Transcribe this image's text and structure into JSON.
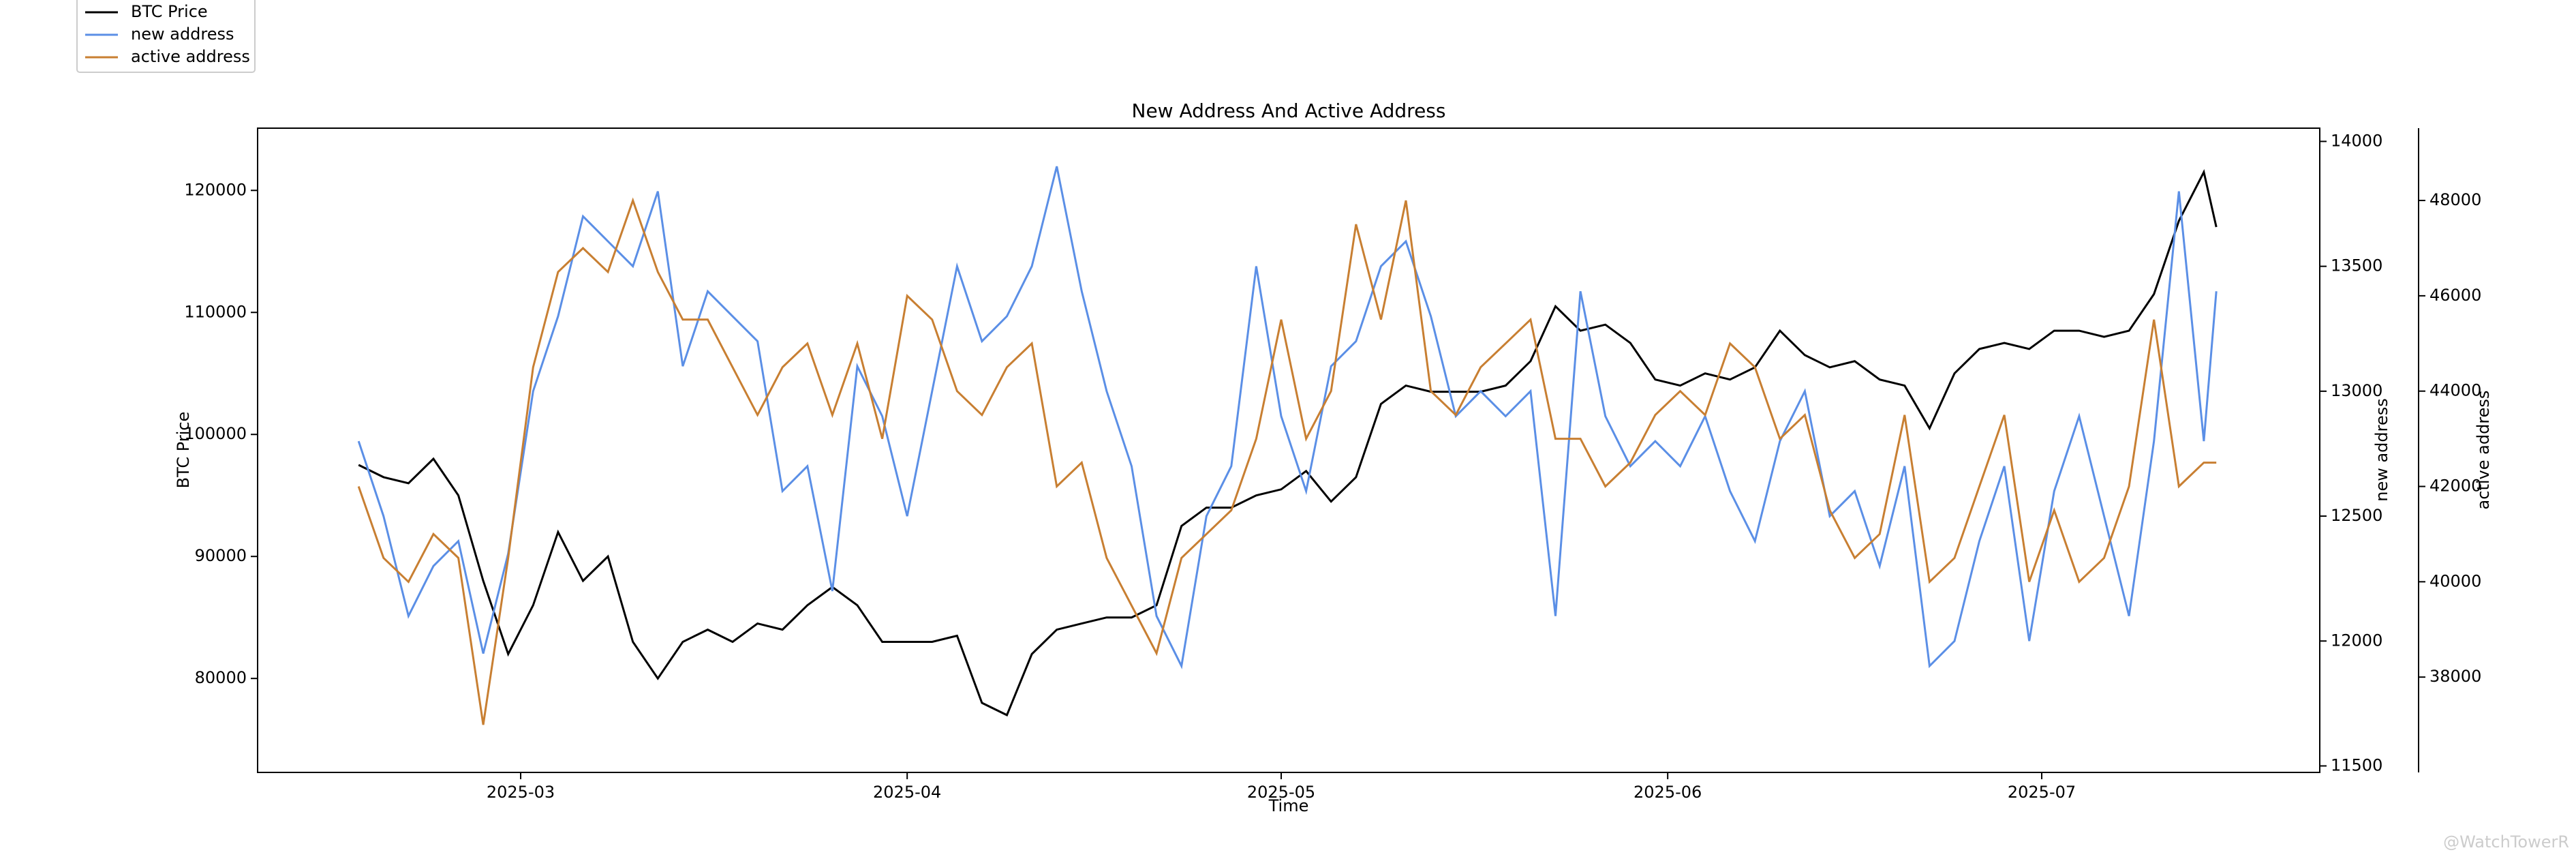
{
  "chart_data": {
    "type": "line",
    "title": "New Address And Active Address",
    "xlabel": "Time",
    "ylabel": "BTC Price",
    "y2label": "new address",
    "y3label": "active address",
    "watermark": "@WatchTowerR",
    "legend": "upper left",
    "x": [
      20135,
      20137,
      20139,
      20141,
      20143,
      20145,
      20147,
      20149,
      20151,
      20153,
      20155,
      20157,
      20159,
      20161,
      20163,
      20165,
      20167,
      20169,
      20171,
      20173,
      20175,
      20177,
      20179,
      20181,
      20183,
      20185,
      20187,
      20189,
      20191,
      20193,
      20195,
      20197,
      20199,
      20201,
      20203,
      20205,
      20207,
      20209,
      20211,
      20213,
      20215,
      20217,
      20219,
      20221,
      20223,
      20225,
      20227,
      20229,
      20231,
      20233,
      20235,
      20237,
      20239,
      20241,
      20243,
      20245,
      20247,
      20249,
      20251,
      20253,
      20255,
      20257,
      20259,
      20261,
      20263,
      20265,
      20267,
      20269,
      20271,
      20273,
      20275,
      20277,
      20279,
      20281,
      20283,
      20284
    ],
    "xlim": [
      20126.9,
      20292.3
    ],
    "xticks": [
      {
        "value": 20148,
        "label": "2025-03"
      },
      {
        "value": 20179,
        "label": "2025-04"
      },
      {
        "value": 20209,
        "label": "2025-05"
      },
      {
        "value": 20240,
        "label": "2025-06"
      },
      {
        "value": 20270,
        "label": "2025-07"
      }
    ],
    "ylim": [
      72300,
      125100
    ],
    "yticks": [
      80000,
      90000,
      100000,
      110000,
      120000
    ],
    "y2lim": [
      11474,
      14053
    ],
    "y2ticks": [
      11500,
      12000,
      12500,
      13000,
      13500,
      14000
    ],
    "y3lim": [
      36000,
      49517
    ],
    "y3ticks": [
      38000,
      40000,
      42000,
      44000,
      46000,
      48000
    ],
    "series": [
      {
        "name": "BTC Price",
        "color": "#000000",
        "values": [
          97500,
          96500,
          96000,
          98000,
          95000,
          88000,
          82000,
          86000,
          92000,
          88000,
          90000,
          83000,
          80000,
          83000,
          84000,
          83000,
          84500,
          84000,
          86000,
          87500,
          86000,
          83000,
          83000,
          83000,
          83500,
          78000,
          77000,
          82000,
          84000,
          84500,
          85000,
          85000,
          86000,
          92500,
          94000,
          94000,
          95000,
          95500,
          97000,
          94500,
          96500,
          102500,
          104000,
          103500,
          103500,
          103500,
          104000,
          106000,
          110500,
          108500,
          109000,
          107500,
          104500,
          104000,
          105000,
          104500,
          105500,
          108500,
          106500,
          105500,
          106000,
          104500,
          104000,
          100500,
          105000,
          107000,
          107500,
          107000,
          108500,
          108500,
          108000,
          108500,
          111500,
          117500,
          121500,
          117000
        ]
      },
      {
        "name": "new address",
        "color": "#5b8fe6",
        "axis": "y2",
        "values": [
          12800,
          12500,
          12100,
          12300,
          12400,
          11950,
          12350,
          13000,
          13300,
          13700,
          13600,
          13500,
          13800,
          13100,
          13400,
          13300,
          13200,
          12600,
          12700,
          12200,
          13100,
          12900,
          12500,
          13000,
          13500,
          13200,
          13300,
          13500,
          13900,
          13400,
          13000,
          12700,
          12100,
          11900,
          12500,
          12700,
          13500,
          12900,
          12600,
          13100,
          13200,
          13500,
          13600,
          13300,
          12900,
          13000,
          12900,
          13000,
          12100,
          13400,
          12900,
          12700,
          12800,
          12700,
          12900,
          12600,
          12400,
          12800,
          13000,
          12500,
          12600,
          12300,
          12700,
          11900,
          12000,
          12400,
          12700,
          12000,
          12600,
          12900,
          12500,
          12100,
          12800,
          13800,
          12800,
          13400
        ]
      },
      {
        "name": "active address",
        "color": "#c87f32",
        "axis": "y3",
        "values": [
          42000,
          40500,
          40000,
          41000,
          40500,
          37000,
          40500,
          44500,
          46500,
          47000,
          46500,
          48000,
          46500,
          45500,
          45500,
          44500,
          43500,
          44500,
          45000,
          43500,
          45000,
          43000,
          46000,
          45500,
          44000,
          43500,
          44500,
          45000,
          42000,
          42500,
          40500,
          39500,
          38500,
          40500,
          41000,
          41500,
          43000,
          45500,
          43000,
          44000,
          47500,
          45500,
          48000,
          44000,
          43500,
          44500,
          45000,
          45500,
          43000,
          43000,
          42000,
          42500,
          43500,
          44000,
          43500,
          45000,
          44500,
          43000,
          43500,
          41500,
          40500,
          41000,
          43500,
          40000,
          40500,
          42000,
          43500,
          40000,
          41500,
          40000,
          40500,
          42000,
          45500,
          42000,
          42500,
          42500
        ]
      }
    ]
  }
}
